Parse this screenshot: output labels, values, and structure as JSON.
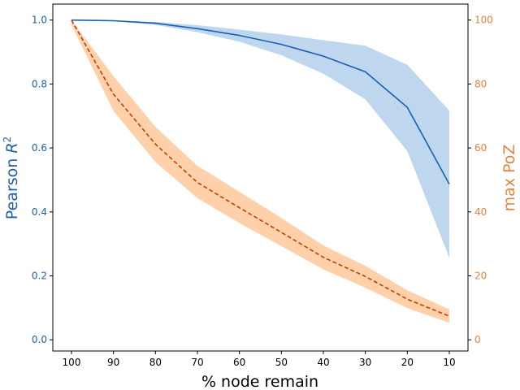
{
  "chart_data": {
    "type": "line",
    "xlabel": "% node remain",
    "ylabel_left": {
      "prefix": "Pearson ",
      "symbol": "R",
      "superscript": "2"
    },
    "ylabel_right": "max PoZ",
    "x": [
      100,
      90,
      80,
      70,
      60,
      50,
      40,
      30,
      20,
      10
    ],
    "x_ticks": [
      "100",
      "90",
      "80",
      "70",
      "60",
      "50",
      "40",
      "30",
      "20",
      "10"
    ],
    "x_reversed": true,
    "ylim_left": [
      -0.035,
      1.05
    ],
    "ylim_right": [
      -3.5,
      105
    ],
    "y_ticks_left": [
      "0.0",
      "0.2",
      "0.4",
      "0.6",
      "0.8",
      "1.0"
    ],
    "y_ticks_right": [
      "0",
      "20",
      "40",
      "60",
      "80",
      "100"
    ],
    "left_color": "#1f5fa8",
    "right_color": "#e8833a",
    "grid": false,
    "legend": "none",
    "series": [
      {
        "axis": "left",
        "color": "#1a5fb4",
        "band_color": "#a8c8e8",
        "style": "solid",
        "values": [
          1.0,
          0.998,
          0.99,
          0.973,
          0.952,
          0.924,
          0.887,
          0.838,
          0.727,
          0.487
        ],
        "lower": [
          1.0,
          0.996,
          0.985,
          0.962,
          0.932,
          0.89,
          0.832,
          0.752,
          0.59,
          0.257
        ],
        "upper": [
          1.0,
          0.999,
          0.994,
          0.984,
          0.97,
          0.955,
          0.937,
          0.92,
          0.86,
          0.717
        ]
      },
      {
        "axis": "right",
        "color": "#c43d00",
        "band_color": "#fdc28e",
        "style": "dashed",
        "values": [
          100,
          76.8,
          61.2,
          49.2,
          41.3,
          33.6,
          25.8,
          19.8,
          12.7,
          7.4
        ],
        "lower": [
          98.5,
          71.5,
          55.6,
          44.3,
          36.5,
          29.3,
          22.0,
          16.3,
          9.9,
          5.3
        ],
        "upper": [
          100,
          82.4,
          66.6,
          54.4,
          46.3,
          38.1,
          29.5,
          23.1,
          15.5,
          9.5
        ]
      }
    ]
  }
}
